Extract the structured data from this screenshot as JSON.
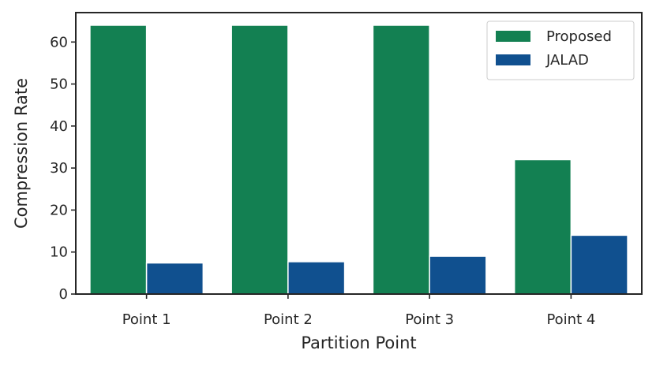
{
  "chart_data": {
    "type": "bar",
    "xlabel": "Partition Point",
    "ylabel": "Compression Rate",
    "categories": [
      "Point 1",
      "Point 2",
      "Point 3",
      "Point 4"
    ],
    "series": [
      {
        "name": "Proposed",
        "color": "#138052",
        "values": [
          64,
          64,
          64,
          32
        ]
      },
      {
        "name": "JALAD",
        "color": "#10508f",
        "values": [
          7.4,
          7.7,
          9.0,
          14.0
        ]
      }
    ],
    "ylim": [
      0,
      67
    ],
    "yticks": [
      0,
      10,
      20,
      30,
      40,
      50,
      60
    ],
    "legend": "top-right",
    "grid": false
  }
}
